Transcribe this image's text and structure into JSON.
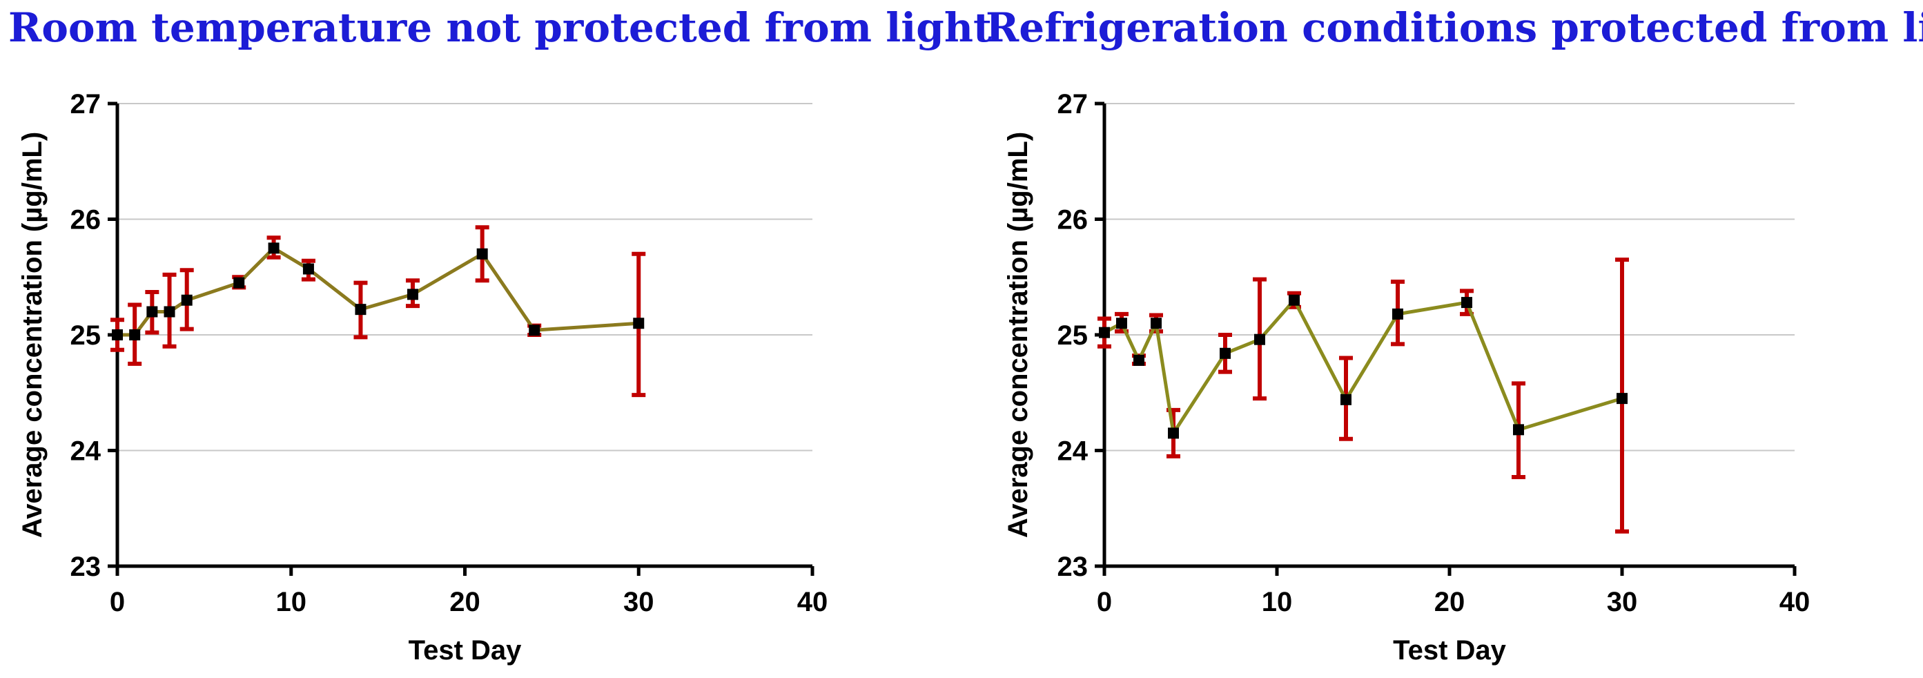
{
  "chart_data": [
    {
      "type": "line",
      "title": "Room temperature not protected from light",
      "xlabel": "Test Day",
      "ylabel": "Average concentration (µg/mL)",
      "xlim": [
        0,
        40
      ],
      "ylim": [
        23,
        27
      ],
      "xticks": [
        "0",
        "10",
        "20",
        "30",
        "40"
      ],
      "yticks": [
        "23",
        "24",
        "25",
        "26",
        "27"
      ],
      "grid": "horizontal",
      "colors": {
        "line": "#8b7a1e",
        "errorbar": "#c00000",
        "marker": "#000000",
        "grid": "#c8c8c8"
      },
      "series": [
        {
          "x": [
            0,
            1,
            2,
            3,
            4,
            7,
            9,
            11,
            14,
            17,
            21,
            24,
            30
          ],
          "y": [
            25.0,
            25.0,
            25.2,
            25.2,
            25.3,
            25.45,
            25.75,
            25.57,
            25.22,
            25.35,
            25.7,
            25.04,
            25.1
          ],
          "error_low": [
            24.87,
            24.75,
            25.02,
            24.9,
            25.05,
            25.41,
            25.67,
            25.48,
            24.98,
            25.25,
            25.47,
            25.0,
            24.48
          ],
          "error_high": [
            25.13,
            25.26,
            25.37,
            25.52,
            25.56,
            25.5,
            25.84,
            25.64,
            25.45,
            25.47,
            25.93,
            25.08,
            25.7
          ]
        }
      ]
    },
    {
      "type": "line",
      "title": "Refrigeration conditions protected from light",
      "xlabel": "Test Day",
      "ylabel": "Average concentration (µg/mL)",
      "xlim": [
        0,
        40
      ],
      "ylim": [
        23,
        27
      ],
      "xticks": [
        "0",
        "10",
        "20",
        "30",
        "40"
      ],
      "yticks": [
        "23",
        "24",
        "25",
        "26",
        "27"
      ],
      "grid": "horizontal",
      "colors": {
        "line": "#8b8b1e",
        "errorbar": "#c00000",
        "marker": "#000000",
        "grid": "#c8c8c8"
      },
      "series": [
        {
          "x": [
            0,
            1,
            2,
            3,
            4,
            7,
            9,
            11,
            14,
            17,
            21,
            24,
            30
          ],
          "y": [
            25.02,
            25.1,
            24.78,
            25.1,
            24.15,
            24.84,
            24.96,
            25.3,
            24.44,
            25.18,
            25.28,
            24.18,
            24.45
          ],
          "error_low": [
            24.9,
            25.03,
            24.75,
            25.03,
            23.95,
            24.68,
            24.45,
            25.24,
            24.1,
            24.92,
            25.18,
            23.77,
            23.3
          ],
          "error_high": [
            25.14,
            25.18,
            24.82,
            25.17,
            24.35,
            25.0,
            25.48,
            25.36,
            24.8,
            25.46,
            25.38,
            24.58,
            25.65
          ]
        }
      ]
    }
  ]
}
